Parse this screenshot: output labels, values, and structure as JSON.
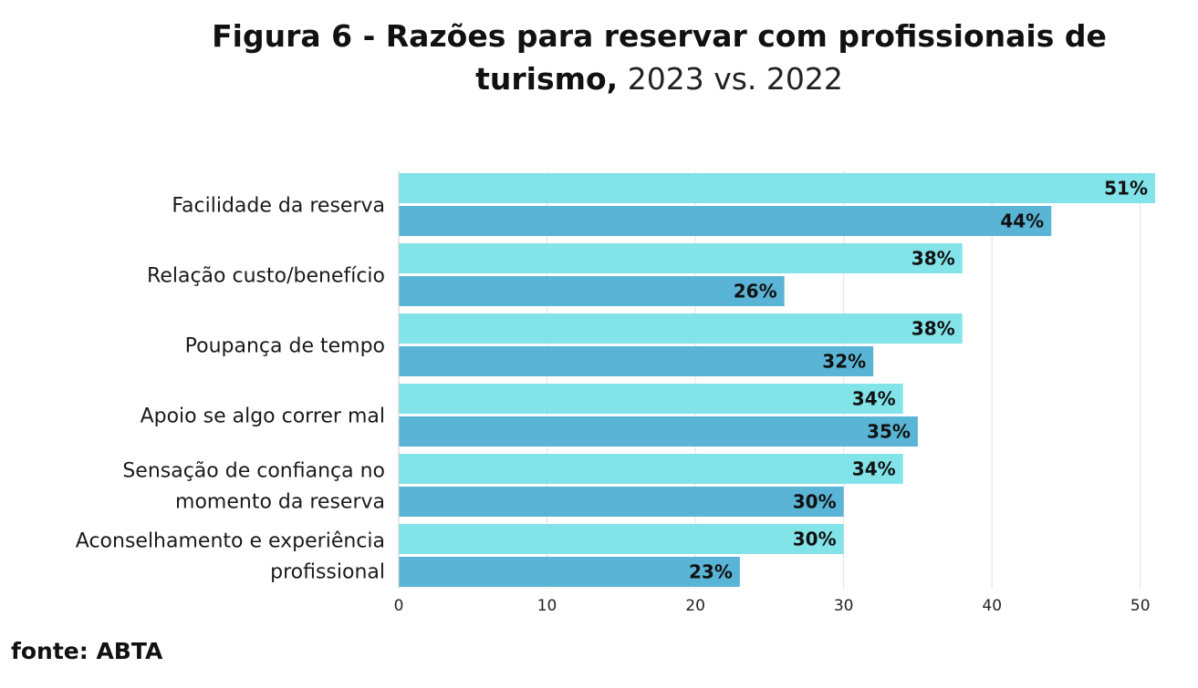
{
  "title_bold": "Figura 6 - Razões para reservar com profissionais de turismo,",
  "title_light": "2023 vs. 2022",
  "source": "fonte: ABTA",
  "chart_data": {
    "type": "bar",
    "orientation": "horizontal",
    "categories": [
      [
        "Facilidade da reserva"
      ],
      [
        "Relação custo/benefício"
      ],
      [
        "Poupança de tempo"
      ],
      [
        "Apoio se algo correr mal"
      ],
      [
        "Sensação de confiança no",
        "momento da reserva"
      ],
      [
        "Aconselhamento e experiência",
        "profissional"
      ]
    ],
    "series": [
      {
        "values": [
          51,
          38,
          38,
          34,
          34,
          30
        ],
        "color": "#82e3e8"
      },
      {
        "values": [
          44,
          26,
          32,
          35,
          30,
          23
        ],
        "color": "#5ab4d6"
      }
    ],
    "value_suffix": "%",
    "xlim": [
      0,
      51
    ],
    "xticks": [
      0,
      10,
      20,
      30,
      40,
      50
    ],
    "grid": true
  }
}
